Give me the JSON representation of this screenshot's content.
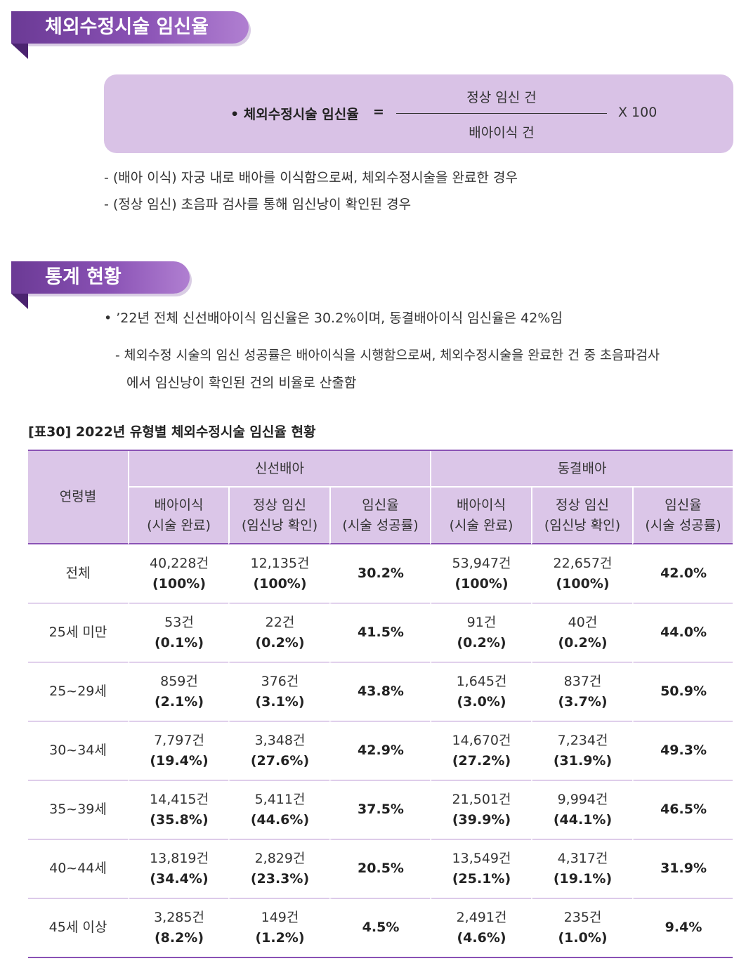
{
  "section1": {
    "title": "체외수정시술 임신율",
    "formula": {
      "bullet": "• 체외수정시술 임신율",
      "equals": "=",
      "numerator": "정상 임신 건",
      "denominator": "배아이식 건",
      "multiplier": "X 100"
    },
    "notes": [
      "- (배아 이식) 자궁 내로 배아를 이식함으로써, 체외수정시술을 완료한 경우",
      "- (정상 임신) 초음파 검사를 통해 임신낭이 확인된 경우"
    ]
  },
  "section2": {
    "title": "통계 현황",
    "bullet": "• ’22년 전체 신선배아이식 임신율은 30.2%이며, 동결배아이식 임신율은 42%임",
    "sub_line1": "- 체외수정 시술의 임신 성공률은 배아이식을 시행함으로써, 체외수정시술을 완료한 건 중 초음파검사",
    "sub_line2": "에서 임신낭이 확인된 건의 비율로 산출함"
  },
  "table": {
    "caption": "[표30] 2022년 유형별 체외수정시술 임신율 현황",
    "age_header": "연령별",
    "groups": [
      "신선배아",
      "동결배아"
    ],
    "subheaders": [
      {
        "line1": "배아이식",
        "line2": "(시술 완료)"
      },
      {
        "line1": "정상 임신",
        "line2": "(임신낭 확인)"
      },
      {
        "line1": "임신율",
        "line2": "(시술 성공률)"
      },
      {
        "line1": "배아이식",
        "line2": "(시술 완료)"
      },
      {
        "line1": "정상 임신",
        "line2": "(임신낭 확인)"
      },
      {
        "line1": "임신율",
        "line2": "(시술 성공률)"
      }
    ],
    "rows": [
      {
        "age": "전체",
        "fresh_transfer": "40,228건",
        "fresh_transfer_pct": "(100%)",
        "fresh_preg": "12,135건",
        "fresh_preg_pct": "(100%)",
        "fresh_rate": "30.2%",
        "frozen_transfer": "53,947건",
        "frozen_transfer_pct": "(100%)",
        "frozen_preg": "22,657건",
        "frozen_preg_pct": "(100%)",
        "frozen_rate": "42.0%"
      },
      {
        "age": "25세 미만",
        "fresh_transfer": "53건",
        "fresh_transfer_pct": "(0.1%)",
        "fresh_preg": "22건",
        "fresh_preg_pct": "(0.2%)",
        "fresh_rate": "41.5%",
        "frozen_transfer": "91건",
        "frozen_transfer_pct": "(0.2%)",
        "frozen_preg": "40건",
        "frozen_preg_pct": "(0.2%)",
        "frozen_rate": "44.0%"
      },
      {
        "age": "25~29세",
        "fresh_transfer": "859건",
        "fresh_transfer_pct": "(2.1%)",
        "fresh_preg": "376건",
        "fresh_preg_pct": "(3.1%)",
        "fresh_rate": "43.8%",
        "frozen_transfer": "1,645건",
        "frozen_transfer_pct": "(3.0%)",
        "frozen_preg": "837건",
        "frozen_preg_pct": "(3.7%)",
        "frozen_rate": "50.9%"
      },
      {
        "age": "30~34세",
        "fresh_transfer": "7,797건",
        "fresh_transfer_pct": "(19.4%)",
        "fresh_preg": "3,348건",
        "fresh_preg_pct": "(27.6%)",
        "fresh_rate": "42.9%",
        "frozen_transfer": "14,670건",
        "frozen_transfer_pct": "(27.2%)",
        "frozen_preg": "7,234건",
        "frozen_preg_pct": "(31.9%)",
        "frozen_rate": "49.3%"
      },
      {
        "age": "35~39세",
        "fresh_transfer": "14,415건",
        "fresh_transfer_pct": "(35.8%)",
        "fresh_preg": "5,411건",
        "fresh_preg_pct": "(44.6%)",
        "fresh_rate": "37.5%",
        "frozen_transfer": "21,501건",
        "frozen_transfer_pct": "(39.9%)",
        "frozen_preg": "9,994건",
        "frozen_preg_pct": "(44.1%)",
        "frozen_rate": "46.5%"
      },
      {
        "age": "40~44세",
        "fresh_transfer": "13,819건",
        "fresh_transfer_pct": "(34.4%)",
        "fresh_preg": "2,829건",
        "fresh_preg_pct": "(23.3%)",
        "fresh_rate": "20.5%",
        "frozen_transfer": "13,549건",
        "frozen_transfer_pct": "(25.1%)",
        "frozen_preg": "4,317건",
        "frozen_preg_pct": "(19.1%)",
        "frozen_rate": "31.9%"
      },
      {
        "age": "45세 이상",
        "fresh_transfer": "3,285건",
        "fresh_transfer_pct": "(8.2%)",
        "fresh_preg": "149건",
        "fresh_preg_pct": "(1.2%)",
        "fresh_rate": "4.5%",
        "frozen_transfer": "2,491건",
        "frozen_transfer_pct": "(4.6%)",
        "frozen_preg": "235건",
        "frozen_preg_pct": "(1.0%)",
        "frozen_rate": "9.4%"
      }
    ]
  }
}
